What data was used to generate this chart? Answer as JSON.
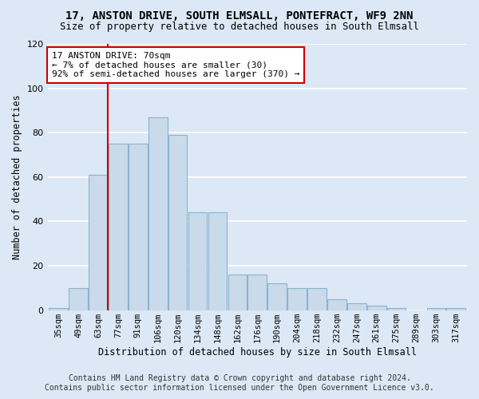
{
  "title_line1": "17, ANSTON DRIVE, SOUTH ELMSALL, PONTEFRACT, WF9 2NN",
  "title_line2": "Size of property relative to detached houses in South Elmsall",
  "xlabel": "Distribution of detached houses by size in South Elmsall",
  "ylabel": "Number of detached properties",
  "footer_line1": "Contains HM Land Registry data © Crown copyright and database right 2024.",
  "footer_line2": "Contains public sector information licensed under the Open Government Licence v3.0.",
  "bar_labels": [
    "35sqm",
    "49sqm",
    "63sqm",
    "77sqm",
    "91sqm",
    "106sqm",
    "120sqm",
    "134sqm",
    "148sqm",
    "162sqm",
    "176sqm",
    "190sqm",
    "204sqm",
    "218sqm",
    "232sqm",
    "247sqm",
    "261sqm",
    "275sqm",
    "289sqm",
    "303sqm",
    "317sqm"
  ],
  "bar_heights": [
    1,
    10,
    61,
    75,
    75,
    87,
    79,
    44,
    44,
    16,
    16,
    12,
    10,
    10,
    5,
    3,
    2,
    1,
    0,
    1,
    1
  ],
  "bar_color": "#c9daea",
  "bar_edgecolor": "#89b4d0",
  "annotation_line1": "17 ANSTON DRIVE: 70sqm",
  "annotation_line2": "← 7% of detached houses are smaller (30)",
  "annotation_line3": "92% of semi-detached houses are larger (370) →",
  "vline_color": "#cc0000",
  "vline_bar_index": 2,
  "ylim_max": 120,
  "bg_color": "#dce8f5",
  "grid_color": "#ffffff"
}
